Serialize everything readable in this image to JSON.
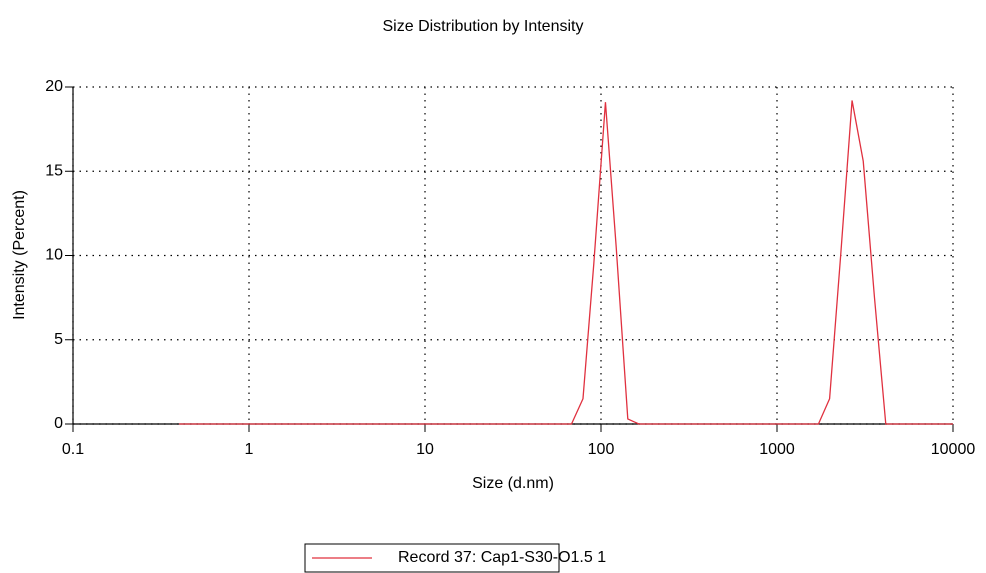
{
  "chart_data": {
    "type": "line",
    "title": "Size Distribution by Intensity",
    "x_label": "Size (d.nm)",
    "y_label": "Intensity (Percent)",
    "x_scale": "log",
    "grid": true,
    "x": [
      0.4,
      1,
      10,
      68,
      79,
      91,
      106,
      122,
      142,
      164,
      1720,
      1990,
      2300,
      2670,
      3090,
      3580,
      4150,
      10000
    ],
    "series": [
      {
        "name": "Record 37: Cap1-S30-O1.5 1",
        "color": "#e0313f",
        "values": [
          0,
          0,
          0,
          0,
          1.5,
          9.5,
          19.1,
          10.5,
          0.3,
          0,
          0,
          1.5,
          10,
          19.2,
          15.6,
          7.5,
          0,
          0
        ]
      }
    ],
    "xlim": [
      0.1,
      10000
    ],
    "xticks": [
      0.1,
      1,
      10,
      100,
      1000,
      10000
    ],
    "ylim": [
      0,
      20
    ],
    "yticks": [
      0,
      5,
      10,
      15,
      20
    ],
    "legend": "bottom"
  }
}
